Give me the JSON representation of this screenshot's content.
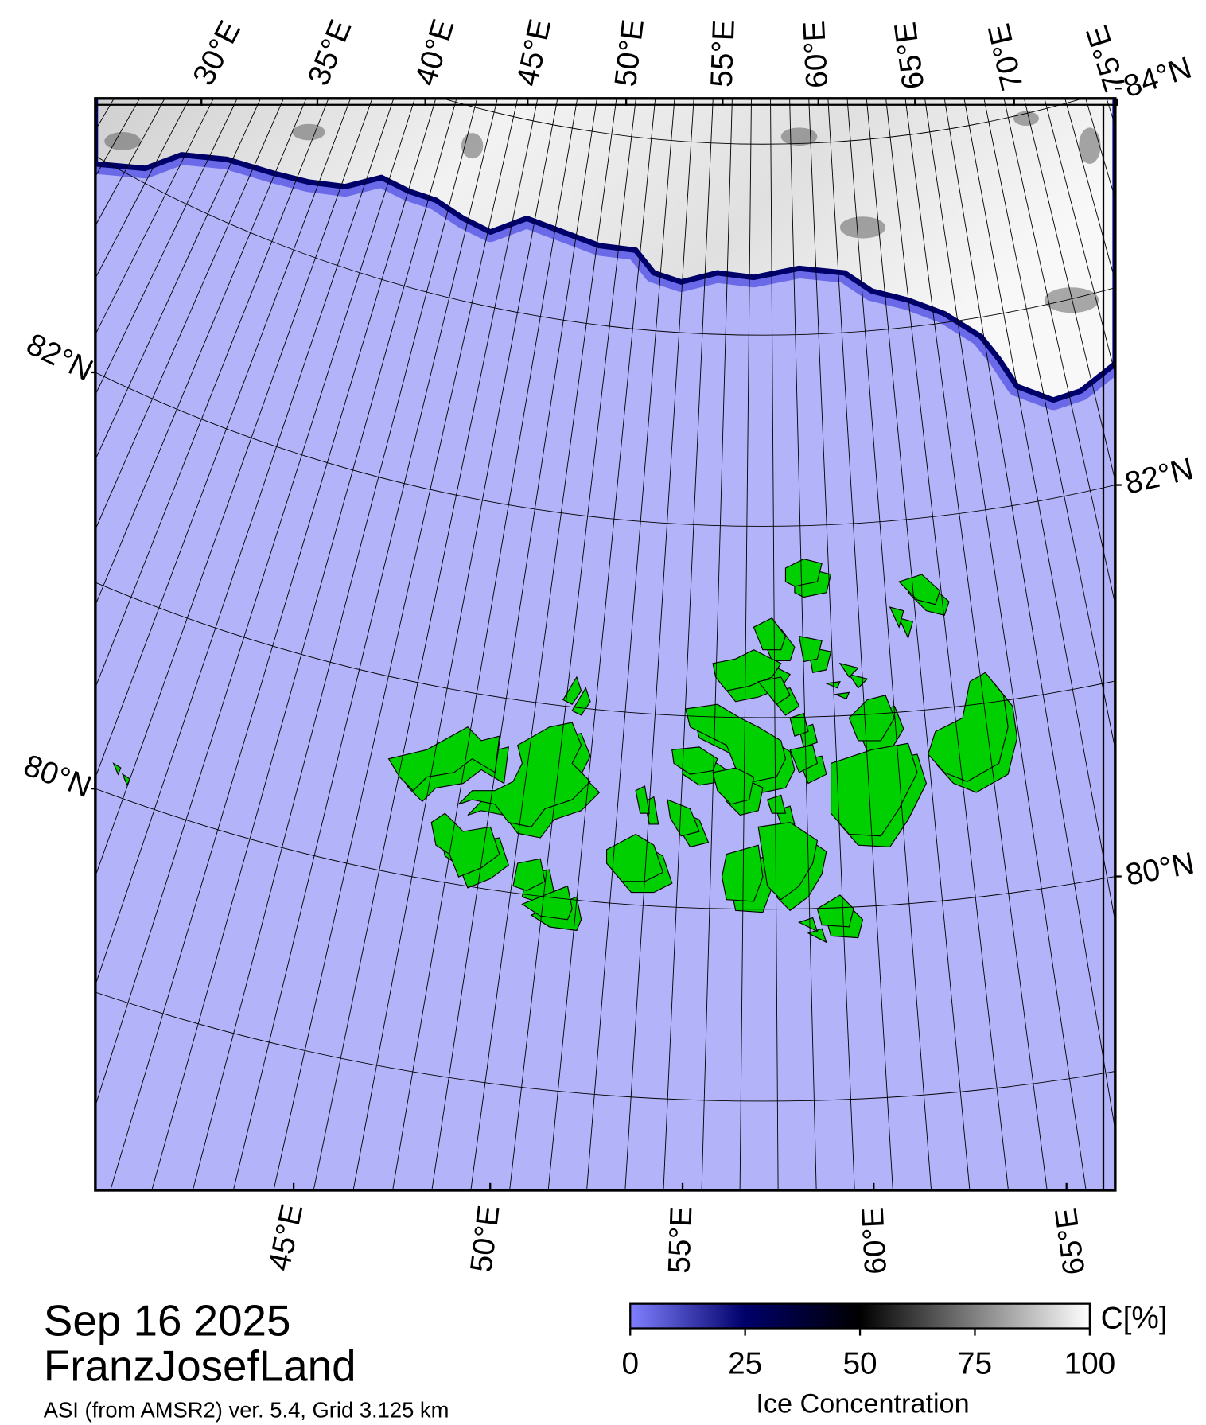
{
  "header": {
    "date": "Sep 16 2025",
    "region": "FranzJosefLand",
    "source": "ASI (from AMSR2) ver. 5.4,  Grid 3.125 km"
  },
  "map": {
    "top_lon_ticks": [
      {
        "value": 30,
        "label": "30°E"
      },
      {
        "value": 35,
        "label": "35°E"
      },
      {
        "value": 40,
        "label": "40°E"
      },
      {
        "value": 45,
        "label": "45°E"
      },
      {
        "value": 50,
        "label": "50°E"
      },
      {
        "value": 55,
        "label": "55°E"
      },
      {
        "value": 60,
        "label": "60°E"
      },
      {
        "value": 65,
        "label": "65°E"
      },
      {
        "value": 70,
        "label": "70°E"
      },
      {
        "value": 75,
        "label": "75°E"
      }
    ],
    "bottom_lon_ticks": [
      {
        "value": 45,
        "label": "45°E"
      },
      {
        "value": 50,
        "label": "50°E"
      },
      {
        "value": 55,
        "label": "55°E"
      },
      {
        "value": 60,
        "label": "60°E"
      },
      {
        "value": 65,
        "label": "65°E"
      }
    ],
    "left_lat_ticks": [
      {
        "value": 82,
        "label": "82°N"
      },
      {
        "value": 80,
        "label": "80°N"
      }
    ],
    "right_lat_ticks": [
      {
        "value": 84,
        "label": "84°N"
      },
      {
        "value": 82,
        "label": "82°N"
      },
      {
        "value": 80,
        "label": "80°N"
      }
    ]
  },
  "colorbar": {
    "label": "Ice Concentration",
    "unit": "C[%]",
    "lim": [
      0,
      100
    ],
    "ticks": [
      0,
      25,
      50,
      75,
      100
    ]
  }
}
